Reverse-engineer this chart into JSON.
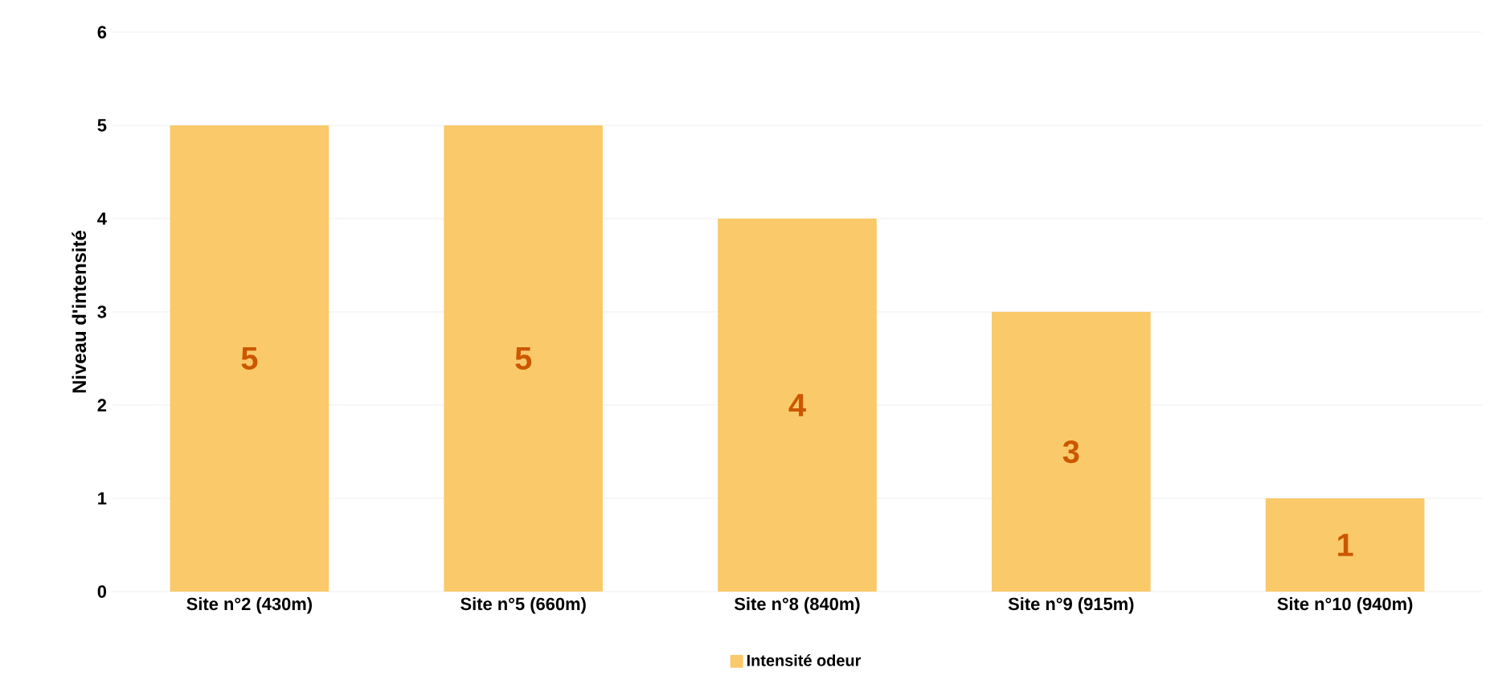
{
  "chart_data": {
    "type": "bar",
    "ylabel": "Niveau d'intensité",
    "categories": [
      "Site n°2 (430m)",
      "Site n°5 (660m)",
      "Site n°8 (840m)",
      "Site n°9 (915m)",
      "Site n°10 (940m)"
    ],
    "series": [
      {
        "name": "Intensité odeur",
        "color": "#f9c96a",
        "values": [
          5,
          5,
          4,
          3,
          1
        ]
      }
    ],
    "ylim": [
      0,
      6
    ],
    "yticks": [
      0,
      1,
      2,
      3,
      4,
      5,
      6
    ],
    "grid": "y",
    "legend": "bottom",
    "data_labels": true
  }
}
